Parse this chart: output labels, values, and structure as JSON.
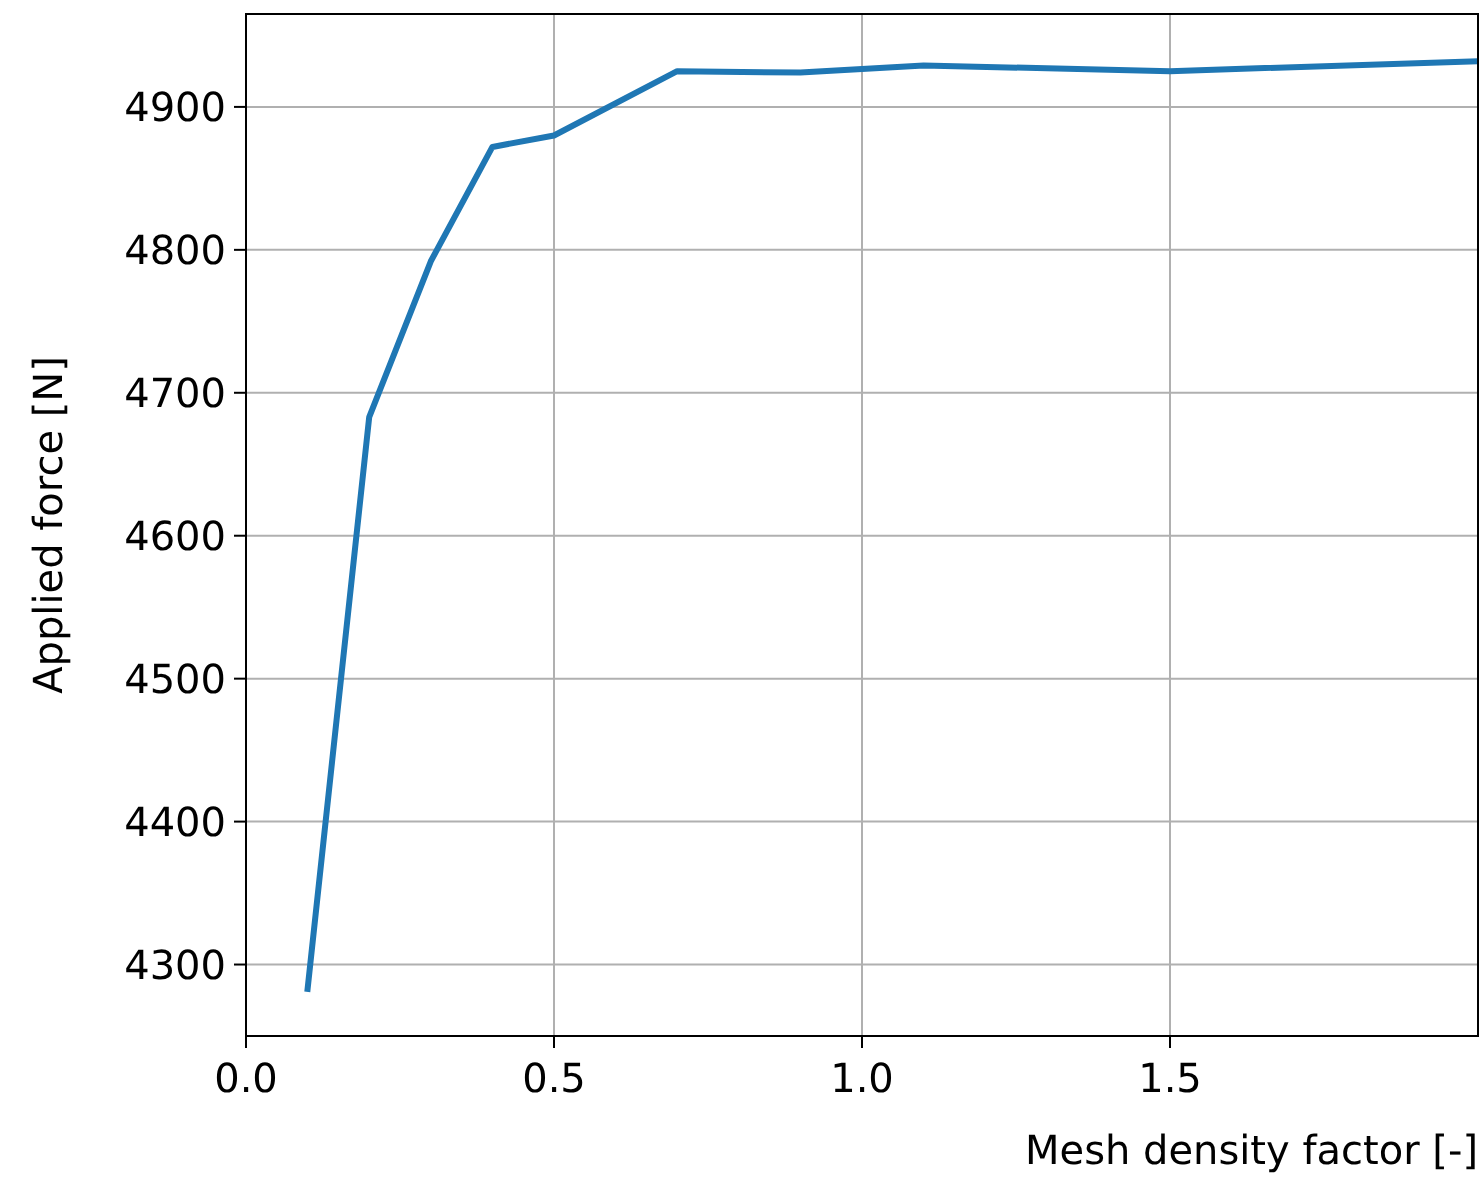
{
  "chart_data": {
    "type": "line",
    "xlabel": "Mesh density factor [-]",
    "ylabel": "Applied force [N]",
    "x": [
      0.1,
      0.2,
      0.3,
      0.4,
      0.5,
      0.7,
      0.9,
      1.1,
      1.5,
      2.0
    ],
    "series": [
      {
        "color": "#1f77b4",
        "values": [
          4283,
          4683,
          4792,
          4872,
          4880,
          4925,
          4924,
          4929,
          4925,
          4932
        ]
      }
    ],
    "xlim": [
      0,
      2
    ],
    "ylim": [
      4250,
      4965
    ],
    "xticks": [
      {
        "value": 0,
        "label": "0.0"
      },
      0.5,
      {
        "value": 1,
        "label": "1.0"
      },
      1.5
    ],
    "yticks": [
      4300,
      4400,
      4500,
      4600,
      4700,
      4800,
      4900
    ],
    "grid": true,
    "marker": "none",
    "line_style": "solid"
  }
}
